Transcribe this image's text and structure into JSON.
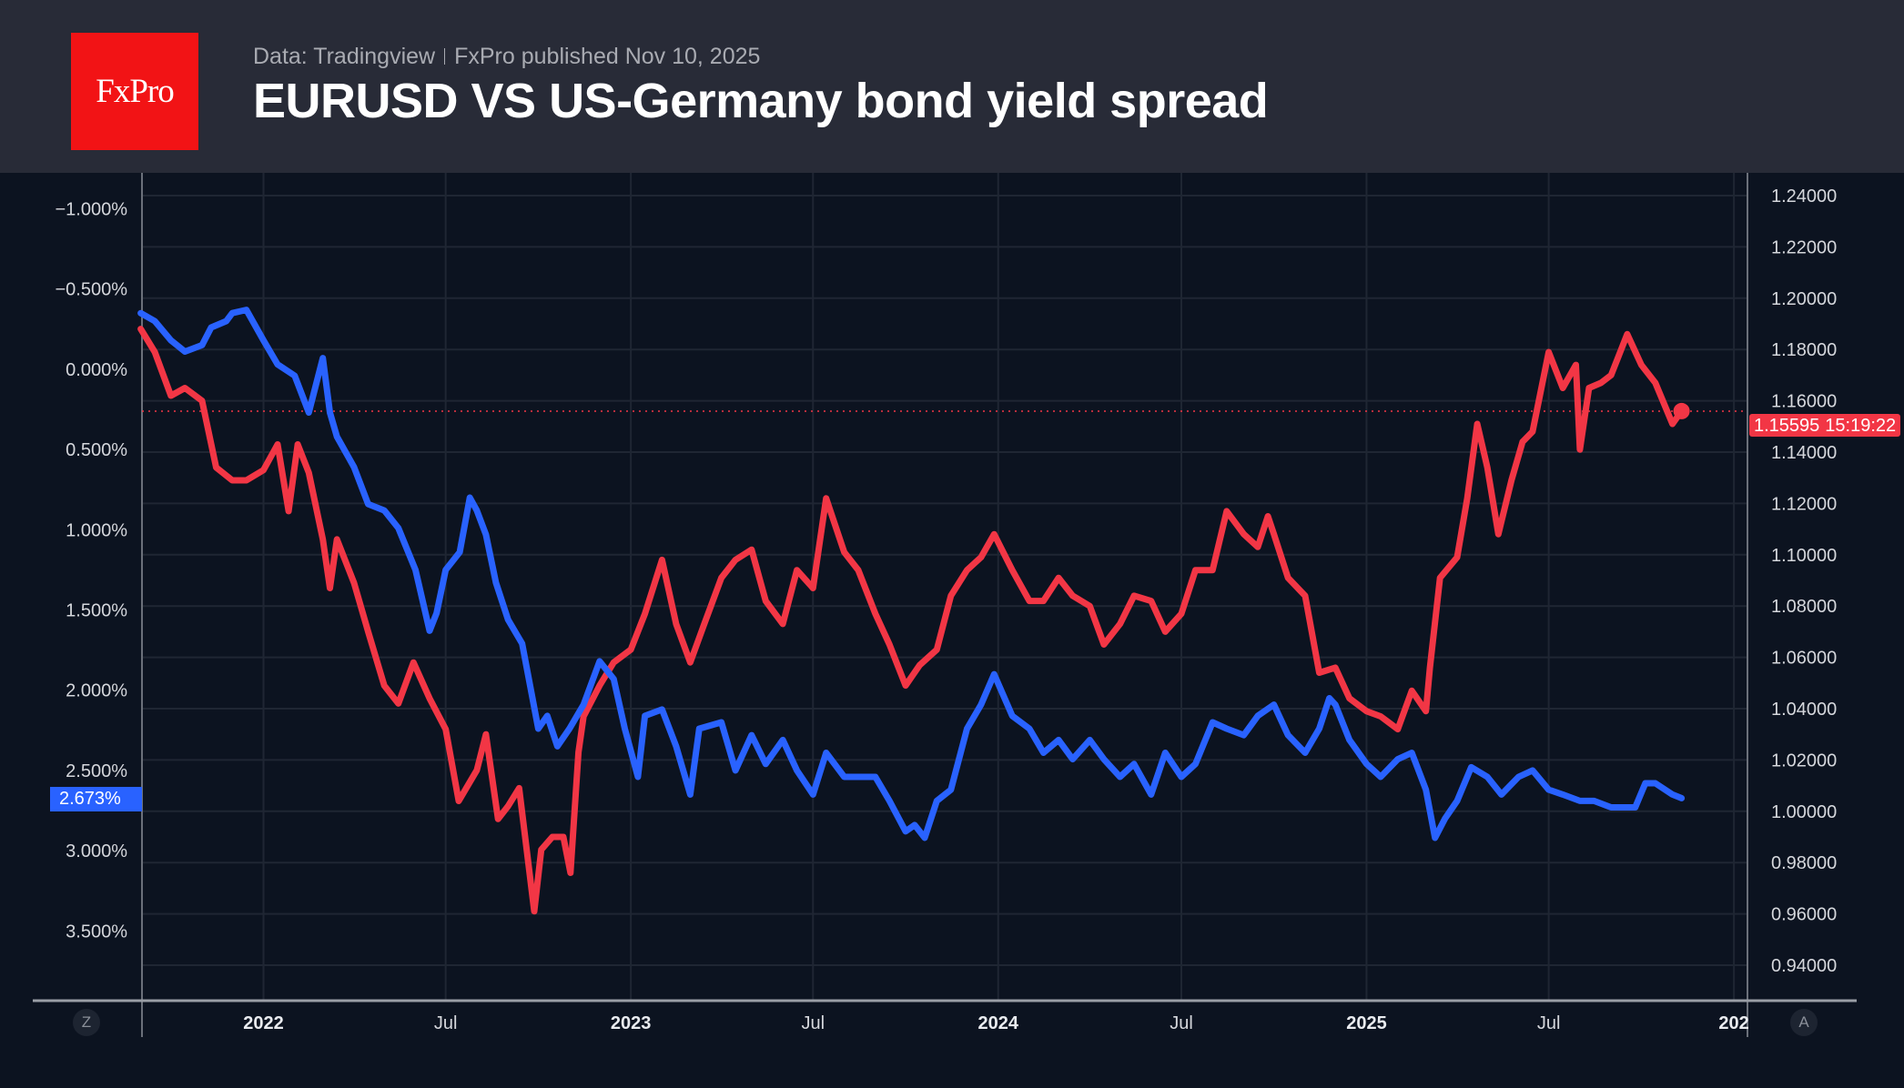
{
  "header": {
    "logo_text": "FxPro",
    "source": "Data: Tradingview",
    "published": "FxPro published Nov 10, 2025",
    "title": "EURUSD VS US-Germany bond yield spread"
  },
  "controls": {
    "left_button": "Z",
    "right_button": "A"
  },
  "colors": {
    "eurusd": "#f23645",
    "spread": "#2962ff",
    "background": "#0c1320",
    "header": "#282b37",
    "logo": "#f21315"
  },
  "chart_data": {
    "type": "line",
    "title": "EURUSD VS US-Germany bond yield spread",
    "grid": true,
    "x_ticks": [
      "2022",
      "Jul",
      "2023",
      "Jul",
      "2024",
      "Jul",
      "2025",
      "Jul",
      "202"
    ],
    "x_tick_dates": [
      "2022-01-01",
      "2022-07-01",
      "2023-01-01",
      "2023-07-01",
      "2024-01-01",
      "2024-07-01",
      "2025-01-01",
      "2025-07-01",
      "2026-01-01"
    ],
    "xlim": [
      "2021-09-01",
      "2026-01-05"
    ],
    "left_axis": {
      "inverted": true,
      "ylim": [
        -1.18,
        3.9
      ],
      "ticks": [
        -1.0,
        -0.5,
        0,
        0.5,
        1.0,
        1.5,
        2.0,
        2.5,
        3.0,
        3.5
      ],
      "tick_labels": [
        "−1.000%",
        "−0.500%",
        "0.000%",
        "0.500%",
        "1.000%",
        "1.500%",
        "2.000%",
        "2.500%",
        "3.000%",
        "3.500%"
      ]
    },
    "right_axis": {
      "ylim": [
        0.932,
        1.25
      ],
      "ticks": [
        1.24,
        1.22,
        1.2,
        1.18,
        1.16,
        1.14,
        1.12,
        1.1,
        1.08,
        1.06,
        1.04,
        1.02,
        1.0,
        0.98,
        0.96,
        0.94
      ],
      "tick_labels": [
        "1.24000",
        "1.22000",
        "1.20000",
        "1.18000",
        "1.16000",
        "1.14000",
        "1.12000",
        "1.10000",
        "1.08000",
        "1.06000",
        "1.04000",
        "1.02000",
        "1.00000",
        "0.98000",
        "0.96000",
        "0.94000"
      ]
    },
    "last_values": {
      "eurusd": "1.15595",
      "countdown": "15:19:22",
      "spread": "2.673%"
    },
    "series": [
      {
        "key": "eurusd",
        "axis": "right",
        "color": "#f23645",
        "points": [
          [
            "2021-09-01",
            1.188
          ],
          [
            "2021-09-15",
            1.179
          ],
          [
            "2021-10-01",
            1.162
          ],
          [
            "2021-10-15",
            1.165
          ],
          [
            "2021-11-01",
            1.16
          ],
          [
            "2021-11-15",
            1.134
          ],
          [
            "2021-12-01",
            1.129
          ],
          [
            "2021-12-15",
            1.129
          ],
          [
            "2022-01-01",
            1.133
          ],
          [
            "2022-01-15",
            1.143
          ],
          [
            "2022-01-26",
            1.117
          ],
          [
            "2022-02-04",
            1.143
          ],
          [
            "2022-02-15",
            1.132
          ],
          [
            "2022-03-01",
            1.106
          ],
          [
            "2022-03-08",
            1.087
          ],
          [
            "2022-03-15",
            1.106
          ],
          [
            "2022-04-01",
            1.089
          ],
          [
            "2022-04-15",
            1.07
          ],
          [
            "2022-05-01",
            1.049
          ],
          [
            "2022-05-15",
            1.042
          ],
          [
            "2022-05-30",
            1.058
          ],
          [
            "2022-06-15",
            1.044
          ],
          [
            "2022-07-01",
            1.032
          ],
          [
            "2022-07-14",
            1.004
          ],
          [
            "2022-08-01",
            1.016
          ],
          [
            "2022-08-10",
            1.03
          ],
          [
            "2022-08-22",
            0.997
          ],
          [
            "2022-09-01",
            1.002
          ],
          [
            "2022-09-12",
            1.009
          ],
          [
            "2022-09-27",
            0.961
          ],
          [
            "2022-10-04",
            0.985
          ],
          [
            "2022-10-15",
            0.99
          ],
          [
            "2022-10-26",
            0.99
          ],
          [
            "2022-11-02",
            0.976
          ],
          [
            "2022-11-10",
            1.023
          ],
          [
            "2022-11-15",
            1.037
          ],
          [
            "2022-12-01",
            1.049
          ],
          [
            "2022-12-15",
            1.058
          ],
          [
            "2023-01-01",
            1.063
          ],
          [
            "2023-01-15",
            1.077
          ],
          [
            "2023-02-01",
            1.098
          ],
          [
            "2023-02-15",
            1.073
          ],
          [
            "2023-03-01",
            1.058
          ],
          [
            "2023-03-15",
            1.073
          ],
          [
            "2023-04-01",
            1.091
          ],
          [
            "2023-04-15",
            1.098
          ],
          [
            "2023-05-01",
            1.102
          ],
          [
            "2023-05-15",
            1.082
          ],
          [
            "2023-06-01",
            1.073
          ],
          [
            "2023-06-15",
            1.094
          ],
          [
            "2023-07-01",
            1.087
          ],
          [
            "2023-07-14",
            1.122
          ],
          [
            "2023-08-01",
            1.101
          ],
          [
            "2023-08-15",
            1.094
          ],
          [
            "2023-09-01",
            1.077
          ],
          [
            "2023-09-15",
            1.065
          ],
          [
            "2023-10-01",
            1.049
          ],
          [
            "2023-10-15",
            1.057
          ],
          [
            "2023-11-01",
            1.063
          ],
          [
            "2023-11-15",
            1.084
          ],
          [
            "2023-12-01",
            1.094
          ],
          [
            "2023-12-15",
            1.099
          ],
          [
            "2023-12-28",
            1.108
          ],
          [
            "2024-01-15",
            1.094
          ],
          [
            "2024-02-01",
            1.082
          ],
          [
            "2024-02-15",
            1.082
          ],
          [
            "2024-03-01",
            1.091
          ],
          [
            "2024-03-15",
            1.084
          ],
          [
            "2024-04-01",
            1.08
          ],
          [
            "2024-04-15",
            1.065
          ],
          [
            "2024-05-01",
            1.073
          ],
          [
            "2024-05-15",
            1.084
          ],
          [
            "2024-06-01",
            1.082
          ],
          [
            "2024-06-15",
            1.07
          ],
          [
            "2024-07-01",
            1.077
          ],
          [
            "2024-07-15",
            1.094
          ],
          [
            "2024-08-01",
            1.094
          ],
          [
            "2024-08-15",
            1.117
          ],
          [
            "2024-09-01",
            1.108
          ],
          [
            "2024-09-15",
            1.103
          ],
          [
            "2024-09-25",
            1.115
          ],
          [
            "2024-10-01",
            1.108
          ],
          [
            "2024-10-15",
            1.091
          ],
          [
            "2024-11-01",
            1.084
          ],
          [
            "2024-11-15",
            1.054
          ],
          [
            "2024-12-01",
            1.056
          ],
          [
            "2024-12-15",
            1.044
          ],
          [
            "2025-01-01",
            1.039
          ],
          [
            "2025-01-15",
            1.037
          ],
          [
            "2025-02-01",
            1.032
          ],
          [
            "2025-02-15",
            1.047
          ],
          [
            "2025-03-01",
            1.039
          ],
          [
            "2025-03-05",
            1.056
          ],
          [
            "2025-03-15",
            1.091
          ],
          [
            "2025-04-01",
            1.099
          ],
          [
            "2025-04-11",
            1.122
          ],
          [
            "2025-04-21",
            1.151
          ],
          [
            "2025-05-01",
            1.134
          ],
          [
            "2025-05-12",
            1.108
          ],
          [
            "2025-05-25",
            1.129
          ],
          [
            "2025-06-05",
            1.144
          ],
          [
            "2025-06-15",
            1.148
          ],
          [
            "2025-07-01",
            1.179
          ],
          [
            "2025-07-15",
            1.165
          ],
          [
            "2025-07-28",
            1.174
          ],
          [
            "2025-08-01",
            1.141
          ],
          [
            "2025-08-10",
            1.165
          ],
          [
            "2025-08-22",
            1.167
          ],
          [
            "2025-09-01",
            1.17
          ],
          [
            "2025-09-17",
            1.186
          ],
          [
            "2025-10-01",
            1.174
          ],
          [
            "2025-10-15",
            1.167
          ],
          [
            "2025-11-01",
            1.151
          ],
          [
            "2025-11-10",
            1.156
          ]
        ]
      },
      {
        "key": "spread",
        "axis": "left",
        "color": "#2962ff",
        "points": [
          [
            "2021-09-01",
            -0.35
          ],
          [
            "2021-09-15",
            -0.3
          ],
          [
            "2021-10-01",
            -0.18
          ],
          [
            "2021-10-15",
            -0.11
          ],
          [
            "2021-11-01",
            -0.15
          ],
          [
            "2021-11-10",
            -0.26
          ],
          [
            "2021-11-25",
            -0.3
          ],
          [
            "2021-12-01",
            -0.35
          ],
          [
            "2021-12-15",
            -0.37
          ],
          [
            "2022-01-01",
            -0.18
          ],
          [
            "2022-01-15",
            -0.03
          ],
          [
            "2022-02-01",
            0.04
          ],
          [
            "2022-02-15",
            0.27
          ],
          [
            "2022-03-01",
            -0.07
          ],
          [
            "2022-03-08",
            0.27
          ],
          [
            "2022-03-15",
            0.42
          ],
          [
            "2022-04-01",
            0.61
          ],
          [
            "2022-04-15",
            0.84
          ],
          [
            "2022-05-01",
            0.88
          ],
          [
            "2022-05-15",
            0.99
          ],
          [
            "2022-06-01",
            1.25
          ],
          [
            "2022-06-15",
            1.63
          ],
          [
            "2022-06-22",
            1.52
          ],
          [
            "2022-07-01",
            1.25
          ],
          [
            "2022-07-15",
            1.14
          ],
          [
            "2022-07-25",
            0.8
          ],
          [
            "2022-08-01",
            0.88
          ],
          [
            "2022-08-10",
            1.03
          ],
          [
            "2022-08-20",
            1.33
          ],
          [
            "2022-09-01",
            1.56
          ],
          [
            "2022-09-15",
            1.71
          ],
          [
            "2022-10-01",
            2.24
          ],
          [
            "2022-10-10",
            2.16
          ],
          [
            "2022-10-20",
            2.35
          ],
          [
            "2022-11-01",
            2.24
          ],
          [
            "2022-11-15",
            2.09
          ],
          [
            "2022-12-01",
            1.82
          ],
          [
            "2022-12-15",
            1.93
          ],
          [
            "2022-12-26",
            2.24
          ],
          [
            "2023-01-08",
            2.54
          ],
          [
            "2023-01-15",
            2.16
          ],
          [
            "2023-02-01",
            2.12
          ],
          [
            "2023-02-15",
            2.35
          ],
          [
            "2023-03-01",
            2.65
          ],
          [
            "2023-03-10",
            2.24
          ],
          [
            "2023-04-01",
            2.2
          ],
          [
            "2023-04-15",
            2.5
          ],
          [
            "2023-05-01",
            2.28
          ],
          [
            "2023-05-15",
            2.46
          ],
          [
            "2023-06-01",
            2.31
          ],
          [
            "2023-06-15",
            2.5
          ],
          [
            "2023-07-01",
            2.65
          ],
          [
            "2023-07-14",
            2.39
          ],
          [
            "2023-08-01",
            2.54
          ],
          [
            "2023-08-15",
            2.54
          ],
          [
            "2023-09-01",
            2.54
          ],
          [
            "2023-09-15",
            2.69
          ],
          [
            "2023-10-01",
            2.88
          ],
          [
            "2023-10-10",
            2.84
          ],
          [
            "2023-10-20",
            2.92
          ],
          [
            "2023-11-01",
            2.69
          ],
          [
            "2023-11-15",
            2.62
          ],
          [
            "2023-12-01",
            2.24
          ],
          [
            "2023-12-15",
            2.09
          ],
          [
            "2023-12-28",
            1.9
          ],
          [
            "2024-01-15",
            2.16
          ],
          [
            "2024-02-01",
            2.24
          ],
          [
            "2024-02-15",
            2.39
          ],
          [
            "2024-03-01",
            2.31
          ],
          [
            "2024-03-15",
            2.43
          ],
          [
            "2024-04-01",
            2.31
          ],
          [
            "2024-04-15",
            2.43
          ],
          [
            "2024-05-01",
            2.54
          ],
          [
            "2024-05-15",
            2.46
          ],
          [
            "2024-06-01",
            2.65
          ],
          [
            "2024-06-15",
            2.39
          ],
          [
            "2024-07-01",
            2.54
          ],
          [
            "2024-07-15",
            2.46
          ],
          [
            "2024-08-01",
            2.2
          ],
          [
            "2024-08-15",
            2.24
          ],
          [
            "2024-09-01",
            2.28
          ],
          [
            "2024-09-15",
            2.16
          ],
          [
            "2024-10-01",
            2.09
          ],
          [
            "2024-10-15",
            2.28
          ],
          [
            "2024-11-01",
            2.39
          ],
          [
            "2024-11-15",
            2.24
          ],
          [
            "2024-11-25",
            2.05
          ],
          [
            "2024-12-01",
            2.09
          ],
          [
            "2024-12-15",
            2.31
          ],
          [
            "2025-01-01",
            2.46
          ],
          [
            "2025-01-15",
            2.54
          ],
          [
            "2025-02-01",
            2.43
          ],
          [
            "2025-02-15",
            2.39
          ],
          [
            "2025-03-01",
            2.62
          ],
          [
            "2025-03-10",
            2.92
          ],
          [
            "2025-03-20",
            2.8
          ],
          [
            "2025-04-01",
            2.69
          ],
          [
            "2025-04-15",
            2.48
          ],
          [
            "2025-05-01",
            2.54
          ],
          [
            "2025-05-15",
            2.65
          ],
          [
            "2025-06-01",
            2.54
          ],
          [
            "2025-06-15",
            2.5
          ],
          [
            "2025-07-01",
            2.62
          ],
          [
            "2025-07-15",
            2.65
          ],
          [
            "2025-08-01",
            2.69
          ],
          [
            "2025-08-15",
            2.69
          ],
          [
            "2025-09-01",
            2.73
          ],
          [
            "2025-09-15",
            2.73
          ],
          [
            "2025-09-25",
            2.73
          ],
          [
            "2025-10-05",
            2.58
          ],
          [
            "2025-10-15",
            2.58
          ],
          [
            "2025-11-01",
            2.65
          ],
          [
            "2025-11-10",
            2.673
          ]
        ]
      }
    ]
  }
}
